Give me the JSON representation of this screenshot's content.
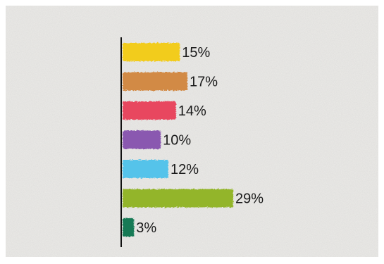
{
  "chart_data": {
    "type": "bar",
    "orientation": "horizontal",
    "title": "",
    "xlabel": "",
    "ylabel": "",
    "xlim": [
      0,
      29
    ],
    "grid": false,
    "legend": "none",
    "value_suffix": "%",
    "series": [
      {
        "values": [
          15,
          17,
          14,
          10,
          12,
          29,
          3
        ],
        "colors": [
          "#f2cc1f",
          "#d28a45",
          "#e8475e",
          "#8a58b0",
          "#55c3ea",
          "#93b52a",
          "#137a55"
        ]
      }
    ]
  },
  "labels": [
    "15%",
    "17%",
    "14%",
    "10%",
    "12%",
    "29%",
    "3%"
  ],
  "background": {
    "paper_color": "#ecebe8",
    "frame_color": "#ffffff"
  }
}
